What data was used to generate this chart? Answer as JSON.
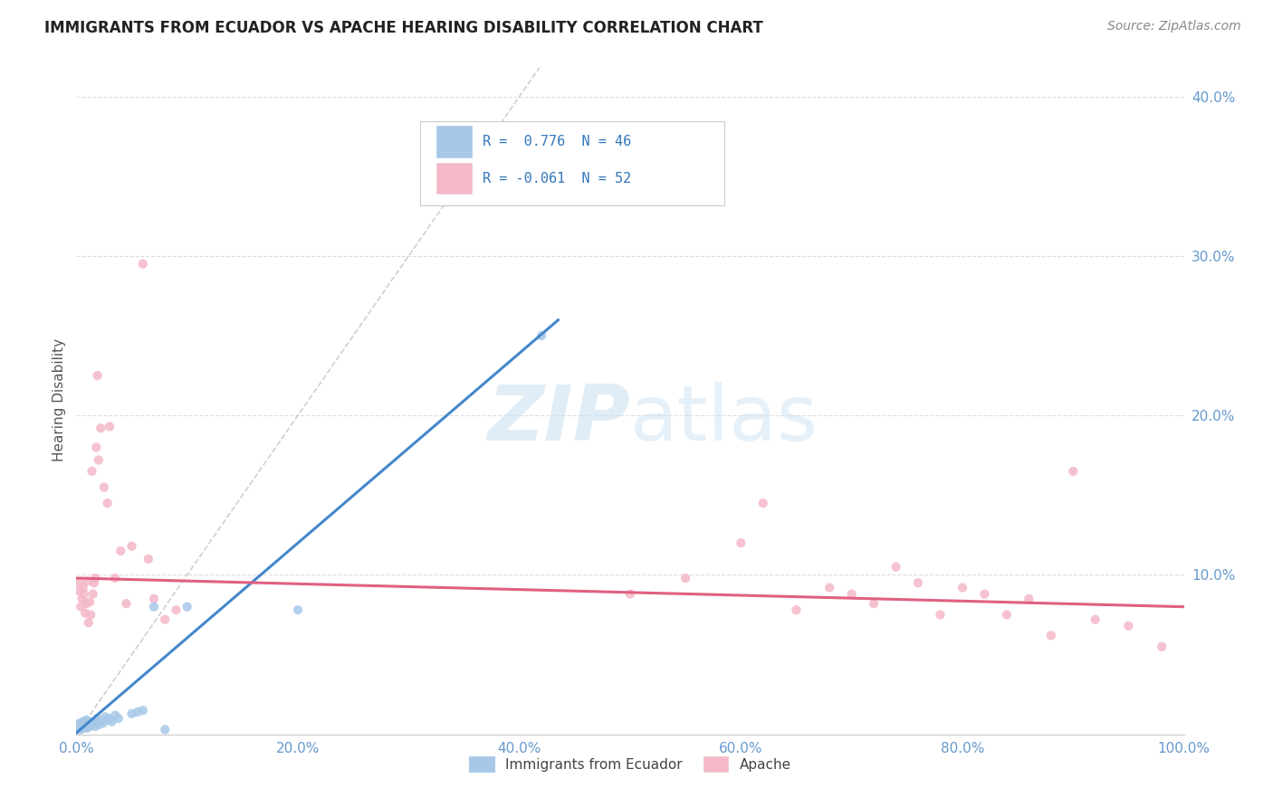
{
  "title": "IMMIGRANTS FROM ECUADOR VS APACHE HEARING DISABILITY CORRELATION CHART",
  "source_text": "Source: ZipAtlas.com",
  "ylabel": "Hearing Disability",
  "xlim": [
    0,
    1.0
  ],
  "ylim": [
    0,
    0.42
  ],
  "xticks": [
    0.0,
    0.2,
    0.4,
    0.6,
    0.8,
    1.0
  ],
  "yticks": [
    0.0,
    0.1,
    0.2,
    0.3,
    0.4
  ],
  "xtick_labels": [
    "0.0%",
    "20.0%",
    "40.0%",
    "60.0%",
    "80.0%",
    "100.0%"
  ],
  "ytick_labels": [
    "",
    "10.0%",
    "20.0%",
    "30.0%",
    "40.0%"
  ],
  "blue_color": "#a8c8e8",
  "pink_color": "#f4b8c8",
  "blue_line_color": "#4488cc",
  "pink_line_color": "#e06080",
  "diag_color": "#bbbbbb",
  "grid_color": "#dddddd",
  "tick_color": "#6699cc",
  "watermark_color": "#c8dff0",
  "blue_slope": 0.595,
  "blue_intercept": 0.001,
  "pink_slope": -0.018,
  "pink_intercept": 0.098,
  "blue_line_xmax": 0.435,
  "blue_points": [
    [
      0.001,
      0.005
    ],
    [
      0.001,
      0.004
    ],
    [
      0.002,
      0.003
    ],
    [
      0.002,
      0.006
    ],
    [
      0.003,
      0.004
    ],
    [
      0.003,
      0.007
    ],
    [
      0.004,
      0.003
    ],
    [
      0.004,
      0.006
    ],
    [
      0.005,
      0.004
    ],
    [
      0.005,
      0.007
    ],
    [
      0.006,
      0.005
    ],
    [
      0.006,
      0.008
    ],
    [
      0.007,
      0.004
    ],
    [
      0.007,
      0.007
    ],
    [
      0.008,
      0.005
    ],
    [
      0.008,
      0.008
    ],
    [
      0.009,
      0.005
    ],
    [
      0.009,
      0.009
    ],
    [
      0.01,
      0.004
    ],
    [
      0.01,
      0.008
    ],
    [
      0.011,
      0.006
    ],
    [
      0.012,
      0.005
    ],
    [
      0.013,
      0.007
    ],
    [
      0.014,
      0.006
    ],
    [
      0.015,
      0.008
    ],
    [
      0.016,
      0.007
    ],
    [
      0.017,
      0.005
    ],
    [
      0.018,
      0.009
    ],
    [
      0.019,
      0.01
    ],
    [
      0.02,
      0.006
    ],
    [
      0.022,
      0.008
    ],
    [
      0.024,
      0.007
    ],
    [
      0.026,
      0.011
    ],
    [
      0.028,
      0.009
    ],
    [
      0.03,
      0.01
    ],
    [
      0.032,
      0.008
    ],
    [
      0.035,
      0.012
    ],
    [
      0.038,
      0.01
    ],
    [
      0.05,
      0.013
    ],
    [
      0.055,
      0.014
    ],
    [
      0.06,
      0.015
    ],
    [
      0.07,
      0.08
    ],
    [
      0.08,
      0.003
    ],
    [
      0.1,
      0.08
    ],
    [
      0.2,
      0.078
    ],
    [
      0.42,
      0.25
    ]
  ],
  "pink_points": [
    [
      0.002,
      0.09
    ],
    [
      0.003,
      0.095
    ],
    [
      0.004,
      0.08
    ],
    [
      0.005,
      0.085
    ],
    [
      0.006,
      0.092
    ],
    [
      0.007,
      0.088
    ],
    [
      0.008,
      0.076
    ],
    [
      0.009,
      0.082
    ],
    [
      0.01,
      0.096
    ],
    [
      0.011,
      0.07
    ],
    [
      0.012,
      0.083
    ],
    [
      0.013,
      0.075
    ],
    [
      0.014,
      0.165
    ],
    [
      0.015,
      0.088
    ],
    [
      0.016,
      0.095
    ],
    [
      0.017,
      0.098
    ],
    [
      0.018,
      0.18
    ],
    [
      0.019,
      0.225
    ],
    [
      0.02,
      0.172
    ],
    [
      0.022,
      0.192
    ],
    [
      0.025,
      0.155
    ],
    [
      0.028,
      0.145
    ],
    [
      0.03,
      0.193
    ],
    [
      0.035,
      0.098
    ],
    [
      0.04,
      0.115
    ],
    [
      0.045,
      0.082
    ],
    [
      0.05,
      0.118
    ],
    [
      0.06,
      0.295
    ],
    [
      0.065,
      0.11
    ],
    [
      0.07,
      0.085
    ],
    [
      0.08,
      0.072
    ],
    [
      0.09,
      0.078
    ],
    [
      0.5,
      0.088
    ],
    [
      0.55,
      0.098
    ],
    [
      0.6,
      0.12
    ],
    [
      0.62,
      0.145
    ],
    [
      0.65,
      0.078
    ],
    [
      0.68,
      0.092
    ],
    [
      0.7,
      0.088
    ],
    [
      0.72,
      0.082
    ],
    [
      0.74,
      0.105
    ],
    [
      0.76,
      0.095
    ],
    [
      0.78,
      0.075
    ],
    [
      0.8,
      0.092
    ],
    [
      0.82,
      0.088
    ],
    [
      0.84,
      0.075
    ],
    [
      0.86,
      0.085
    ],
    [
      0.88,
      0.062
    ],
    [
      0.9,
      0.165
    ],
    [
      0.92,
      0.072
    ],
    [
      0.95,
      0.068
    ],
    [
      0.98,
      0.055
    ]
  ]
}
